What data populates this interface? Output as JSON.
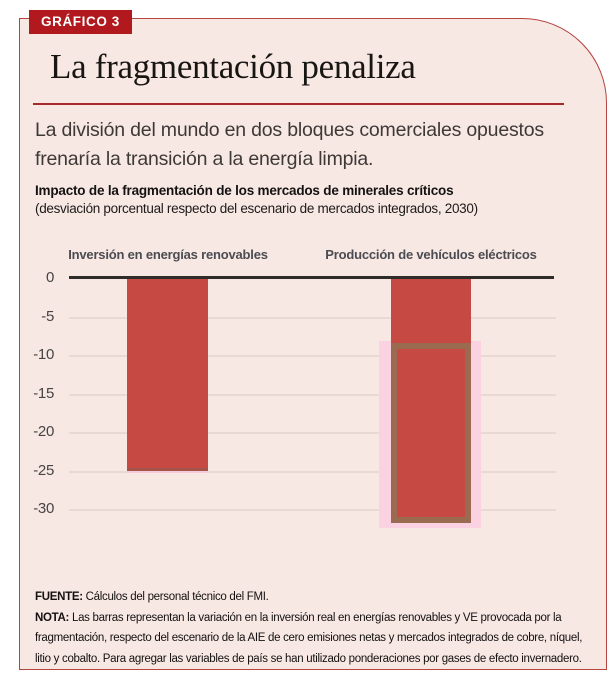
{
  "badge": {
    "label": "GRÁFICO 3"
  },
  "title": "La fragmentación penaliza",
  "subtitle": "La división del mundo en dos bloques comerciales opuestos frenaría la transición a la energía limpia.",
  "chart_data": {
    "type": "bar",
    "heading": "Impacto de la fragmentación de los mercados de minerales críticos",
    "unit_note": "(desviación porcentual respecto del escenario de mercados integrados, 2030)",
    "categories": [
      "Inversión en energías renovables",
      "Producción de vehículos eléctricos"
    ],
    "values": [
      -25,
      -31.5
    ],
    "yticks": [
      0,
      -5,
      -10,
      -15,
      -20,
      -25,
      -30
    ],
    "ylim": [
      -34,
      0
    ],
    "grid": true,
    "legend_position": "none",
    "overlay": {
      "category_index": 1,
      "from": -8.5,
      "to": -31.5,
      "description": "rectángulo con borde marrón y halo rosa superpuesto a la barra de vehículos eléctricos"
    }
  },
  "footer": {
    "source_label": "FUENTE:",
    "source": "Cálculos del personal técnico del FMI.",
    "note_label": "NOTA:",
    "note": "Las barras representan la variación en la inversión real en energías renovables y VE provocada por la fragmentación, respecto del escenario de la AIE de cero emisiones netas y mercados integrados de cobre, níquel, litio y cobalto. Para agregar las variables de país se han utilizado ponderaciones por gases de efecto invernadero."
  },
  "colors": {
    "card_bg": "#f7e8e4",
    "card_border": "#b5443f",
    "badge_bg": "#b2191e",
    "badge_text": "#ffffff",
    "title_rule": "#a62a2c",
    "bar_red": "#c64944",
    "overlay_brown": "#9a6b51",
    "halo_pink": "#fbd2e2",
    "zero_line": "#2e2b28",
    "gridline": "#e9d9d4"
  }
}
